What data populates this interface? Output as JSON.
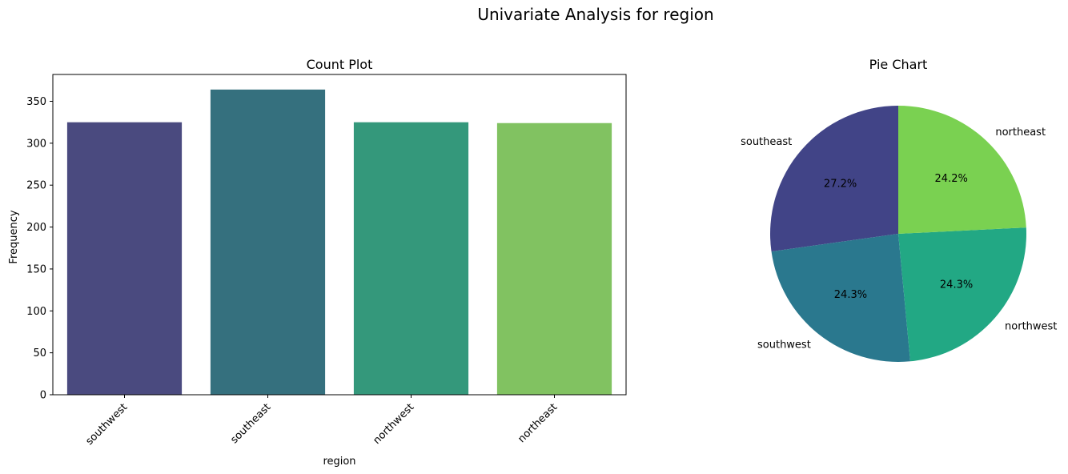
{
  "figure": {
    "title": "Univariate Analysis for region"
  },
  "chart_data": [
    {
      "type": "bar",
      "title": "Count Plot",
      "xlabel": "region",
      "ylabel": "Frequency",
      "categories": [
        "southwest",
        "southeast",
        "northwest",
        "northeast"
      ],
      "values": [
        325,
        364,
        325,
        324
      ],
      "colors": [
        "#4a4a7f",
        "#35707e",
        "#34987b",
        "#81c261"
      ],
      "ylim": [
        0,
        382
      ],
      "yticks": [
        0,
        50,
        100,
        150,
        200,
        250,
        300,
        350
      ],
      "grid": false
    },
    {
      "type": "pie",
      "title": "Pie Chart",
      "labels": [
        "southeast",
        "southwest",
        "northwest",
        "northeast"
      ],
      "values": [
        364,
        325,
        325,
        324
      ],
      "autopct": [
        "27.2%",
        "24.3%",
        "24.3%",
        "24.2%"
      ],
      "colors": [
        "#414487",
        "#2a788e",
        "#22a884",
        "#7ad151"
      ],
      "start_angle_deg": 90
    }
  ]
}
